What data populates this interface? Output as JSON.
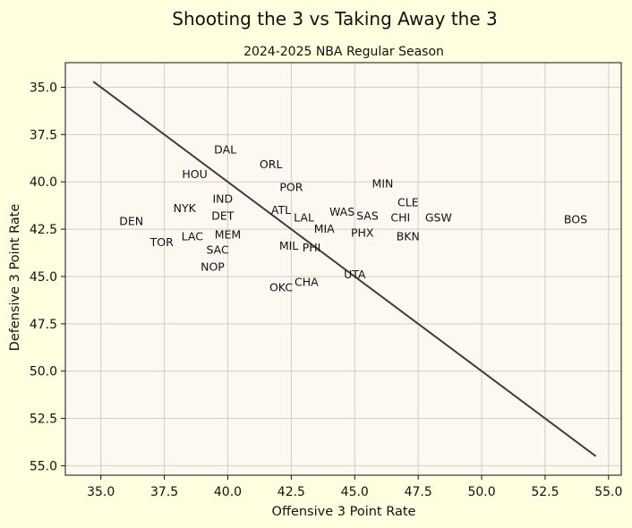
{
  "colors": {
    "figure_background": "#ffffe0",
    "plot_background": "#fdf9f0",
    "grid": "#d0cec4",
    "line": "#3d3d3d",
    "text": "#111111"
  },
  "chart_data": {
    "type": "scatter",
    "title": "Shooting the 3 vs Taking Away the 3",
    "subtitle": "2024-2025 NBA Regular Season",
    "xlabel": "Offensive 3 Point Rate",
    "ylabel": "Defensive 3 Point Rate",
    "xlim": [
      33.6,
      55.5
    ],
    "ylim": [
      55.5,
      33.7
    ],
    "y_inverted": true,
    "grid": true,
    "legend": "none",
    "x_ticks": [
      35.0,
      37.5,
      40.0,
      42.5,
      45.0,
      47.5,
      50.0,
      52.5,
      55.0
    ],
    "x_tick_labels": [
      "35.0",
      "37.5",
      "40.0",
      "42.5",
      "45.0",
      "47.5",
      "50.0",
      "52.5",
      "55.0"
    ],
    "y_ticks": [
      35.0,
      37.5,
      40.0,
      42.5,
      45.0,
      47.5,
      50.0,
      52.5,
      55.0
    ],
    "y_tick_labels": [
      "35.0",
      "37.5",
      "40.0",
      "42.5",
      "45.0",
      "47.5",
      "50.0",
      "52.5",
      "55.0"
    ],
    "trend_line": {
      "x": [
        34.7,
        54.5
      ],
      "y": [
        34.7,
        54.5
      ]
    },
    "points": [
      {
        "label": "DAL",
        "x": 39.9,
        "y": 38.3
      },
      {
        "label": "ORL",
        "x": 41.7,
        "y": 39.1
      },
      {
        "label": "HOU",
        "x": 38.7,
        "y": 39.6
      },
      {
        "label": "MIN",
        "x": 46.1,
        "y": 40.1
      },
      {
        "label": "POR",
        "x": 42.5,
        "y": 40.3
      },
      {
        "label": "IND",
        "x": 39.8,
        "y": 40.9
      },
      {
        "label": "CLE",
        "x": 47.1,
        "y": 41.1
      },
      {
        "label": "NYK",
        "x": 38.3,
        "y": 41.4
      },
      {
        "label": "ATL",
        "x": 42.1,
        "y": 41.5
      },
      {
        "label": "WAS",
        "x": 44.5,
        "y": 41.6
      },
      {
        "label": "SAS",
        "x": 45.5,
        "y": 41.8
      },
      {
        "label": "DET",
        "x": 39.8,
        "y": 41.8
      },
      {
        "label": "LAL",
        "x": 43.0,
        "y": 41.9
      },
      {
        "label": "CHI",
        "x": 46.8,
        "y": 41.9
      },
      {
        "label": "GSW",
        "x": 48.3,
        "y": 41.9
      },
      {
        "label": "BOS",
        "x": 53.7,
        "y": 42.0
      },
      {
        "label": "DEN",
        "x": 36.2,
        "y": 42.1
      },
      {
        "label": "MIA",
        "x": 43.8,
        "y": 42.5
      },
      {
        "label": "PHX",
        "x": 45.3,
        "y": 42.7
      },
      {
        "label": "MEM",
        "x": 40.0,
        "y": 42.8
      },
      {
        "label": "LAC",
        "x": 38.6,
        "y": 42.9
      },
      {
        "label": "BKN",
        "x": 47.1,
        "y": 42.9
      },
      {
        "label": "TOR",
        "x": 37.4,
        "y": 43.2
      },
      {
        "label": "MIL",
        "x": 42.4,
        "y": 43.4
      },
      {
        "label": "PHI",
        "x": 43.3,
        "y": 43.5
      },
      {
        "label": "SAC",
        "x": 39.6,
        "y": 43.6
      },
      {
        "label": "NOP",
        "x": 39.4,
        "y": 44.5
      },
      {
        "label": "UTA",
        "x": 45.0,
        "y": 44.9
      },
      {
        "label": "CHA",
        "x": 43.1,
        "y": 45.3
      },
      {
        "label": "OKC",
        "x": 42.1,
        "y": 45.6
      }
    ]
  }
}
